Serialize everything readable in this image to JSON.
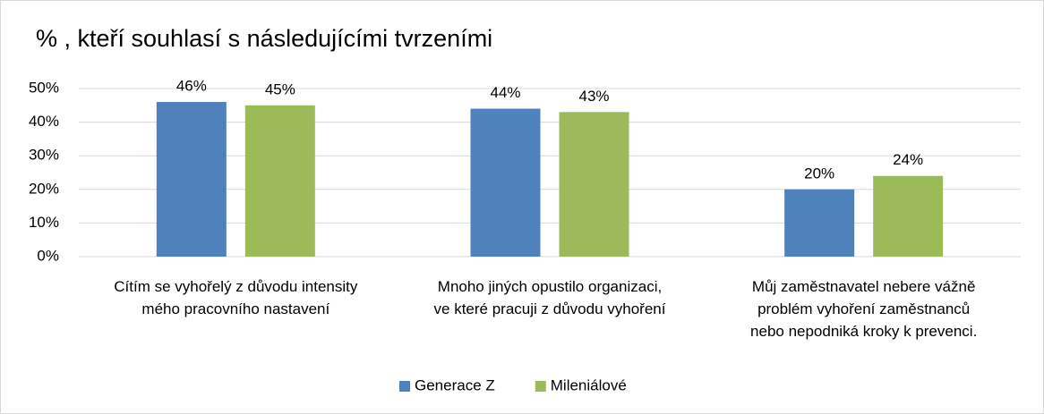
{
  "chart_data": {
    "type": "bar",
    "title": "% , kteří souhlasí s následujícími tvrzeními",
    "categories": [
      "Cítím se vyhořelý z důvodu intensity\nmého pracovního nastavení",
      "Mnoho jiných opustilo organizaci,\nve které pracuji z důvodu vyhoření",
      "Můj zaměstnavatel nebere vážně\nproblém vyhoření zaměstnanců\nnebo nepodniká kroky k prevenci."
    ],
    "series": [
      {
        "name": "Generace Z",
        "color": "#4f81bd",
        "values": [
          46,
          44,
          20
        ],
        "value_labels": [
          "46%",
          "44%",
          "20%"
        ]
      },
      {
        "name": "Mileniálové",
        "color": "#9bbb59",
        "values": [
          45,
          43,
          24
        ],
        "value_labels": [
          "45%",
          "43%",
          "24%"
        ]
      }
    ],
    "ylim": [
      0,
      50
    ],
    "yticks": [
      {
        "value": 0,
        "label": "0%"
      },
      {
        "value": 10,
        "label": "10%"
      },
      {
        "value": 20,
        "label": "20%"
      },
      {
        "value": 30,
        "label": "30%"
      },
      {
        "value": 40,
        "label": "40%"
      },
      {
        "value": 50,
        "label": "50%"
      }
    ],
    "grid": true,
    "legend": "bottom"
  }
}
